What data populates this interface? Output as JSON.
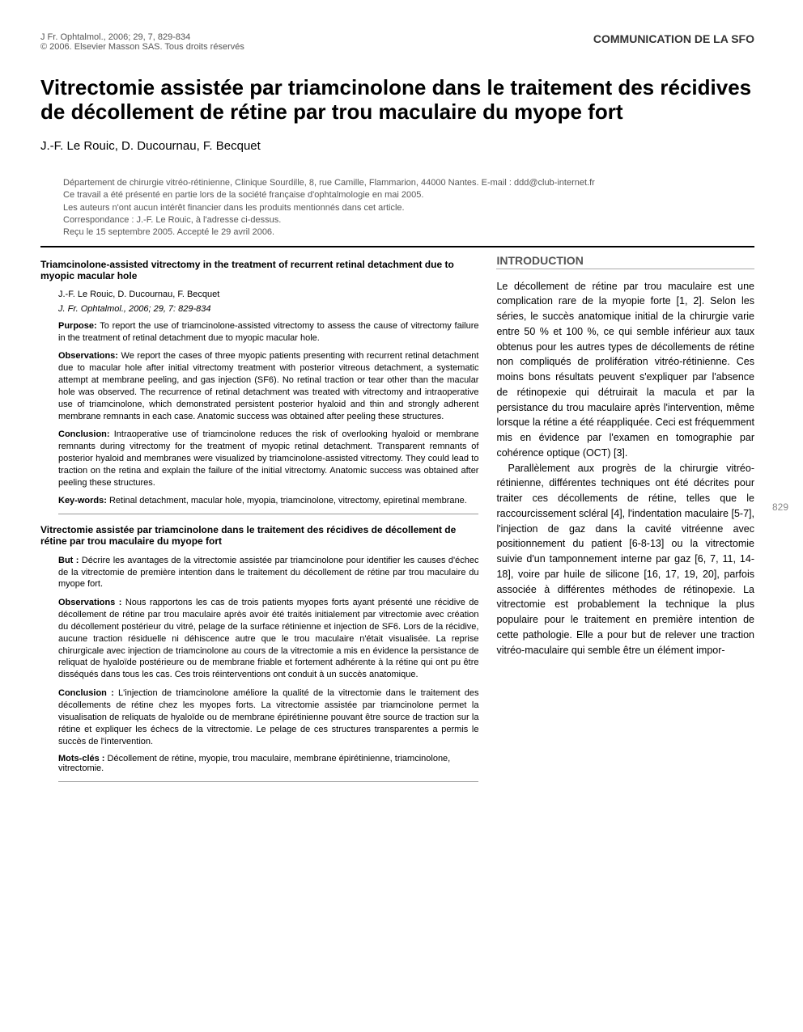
{
  "header": {
    "journal_ref": "J Fr. Ophtalmol., 2006; 29, 7, 829-834",
    "copyright": "© 2006. Elsevier Masson SAS. Tous droits réservés",
    "comm_type": "COMMUNICATION DE LA SFO"
  },
  "title": "Vitrectomie assistée par triamcinolone dans le traitement des récidives de décollement de rétine par trou maculaire du myope fort",
  "authors": "J.-F. Le Rouic, D. Ducournau, F. Becquet",
  "affiliations": [
    "Département de chirurgie vitréo-rétinienne, Clinique Sourdille, 8, rue Camille, Flammarion, 44000 Nantes. E-mail : ddd@club-internet.fr",
    "Ce travail a été présenté en partie lors de la société française d'ophtalmologie en mai 2005.",
    "Les auteurs n'ont aucun intérêt financier dans les produits mentionnés dans cet article.",
    "Correspondance : J.-F. Le Rouic, à l'adresse ci-dessus.",
    "Reçu le 15 septembre 2005. Accepté le 29 avril 2006."
  ],
  "abstract_en": {
    "title": "Triamcinolone-assisted vitrectomy in the treatment of recurrent retinal detachment due to myopic macular hole",
    "authors": "J.-F. Le Rouic, D. Ducournau, F. Becquet",
    "ref": "J. Fr. Ophtalmol., 2006; 29, 7: 829-834",
    "purpose_label": "Purpose:",
    "purpose": " To report the use of triamcinolone-assisted vitrectomy to assess the cause of vitrectomy failure in the treatment of retinal detachment due to myopic macular hole.",
    "observations_label": "Observations:",
    "observations": " We report the cases of three myopic patients presenting with recurrent retinal detachment due to macular hole after initial vitrectomy treatment with posterior vitreous detachment, a systematic attempt at membrane peeling, and gas injection (SF6). No retinal traction or tear other than the macular hole was observed. The recurrence of retinal detachment was treated with vitrectomy and intraoperative use of triamcinolone, which demonstrated persistent posterior hyaloid and thin and strongly adherent membrane remnants in each case. Anatomic success was obtained after peeling these structures.",
    "conclusion_label": "Conclusion:",
    "conclusion": " Intraoperative use of triamcinolone reduces the risk of overlooking hyaloid or membrane remnants during vitrectomy for the treatment of myopic retinal detachment. Transparent remnants of posterior hyaloid and membranes were visualized by triamcinolone-assisted vitrectomy. They could lead to traction on the retina and explain the failure of the initial vitrectomy. Anatomic success was obtained after peeling these structures.",
    "keywords_label": "Key-words:",
    "keywords": " Retinal detachment, macular hole, myopia, triamcinolone, vitrectomy, epiretinal membrane."
  },
  "abstract_fr": {
    "title": "Vitrectomie assistée par triamcinolone dans le traitement des récidives de décollement de rétine par trou maculaire du myope fort",
    "but_label": "But :",
    "but": " Décrire les avantages de la vitrectomie assistée par triamcinolone pour identifier les causes d'échec de la vitrectomie de première intention dans le traitement du décollement de rétine par trou maculaire du myope fort.",
    "observations_label": "Observations :",
    "observations": " Nous rapportons les cas de trois patients myopes forts ayant présenté une récidive de décollement de rétine par trou maculaire après avoir été traités initialement par vitrectomie avec création du décollement postérieur du vitré, pelage de la surface rétinienne et injection de SF6. Lors de la récidive, aucune traction résiduelle ni déhiscence autre que le trou maculaire n'était visualisée. La reprise chirurgicale avec injection de triamcinolone au cours de la vitrectomie a mis en évidence la persistance de reliquat de hyaloïde postérieure ou de membrane friable et fortement adhérente à la rétine qui ont pu être disséqués dans tous les cas. Ces trois réinterventions ont conduit à un succès anatomique.",
    "conclusion_label": "Conclusion :",
    "conclusion": " L'injection de triamcinolone améliore la qualité de la vitrectomie dans le traitement des décollements de rétine chez les myopes forts. La vitrectomie assistée par triamcinolone permet la visualisation de reliquats de hyaloïde ou de membrane épirétinienne pouvant être source de traction sur la rétine et expliquer les échecs de la vitrectomie. Le pelage de ces structures transparentes a permis le succès de l'intervention.",
    "motscles_label": "Mots-clés :",
    "motscles": " Décollement de rétine, myopie, trou maculaire, membrane épirétinienne, triamcinolone, vitrectomie."
  },
  "intro": {
    "heading": "INTRODUCTION",
    "p1": "Le décollement de rétine par trou maculaire est une complication rare de la myopie forte [1, 2]. Selon les séries, le succès anatomique initial de la chirurgie varie entre 50 % et 100 %, ce qui semble inférieur aux taux obtenus pour les autres types de décollements de rétine non compliqués de prolifération vitréo-rétinienne. Ces moins bons résultats peuvent s'expliquer par l'absence de rétinopexie qui détruirait la macula et par la persistance du trou maculaire après l'intervention, même lorsque la rétine a été réappliquée. Ceci est fréquemment mis en évidence par l'examen en tomographie par cohérence optique (OCT) [3].",
    "p2": "Parallèlement aux progrès de la chirurgie vitréo-rétinienne, différentes techniques ont été décrites pour traiter ces décollements de rétine, telles que le raccourcissement scléral [4], l'indentation maculaire [5-7], l'injection de gaz dans la cavité vitréenne avec positionnement du patient [6-8-13] ou la vitrectomie suivie d'un tamponnement interne par gaz [6, 7, 11, 14-18], voire par huile de silicone [16, 17, 19, 20], parfois associée à différentes méthodes de rétinopexie. La vitrectomie est probablement la technique la plus populaire pour le traitement en première intention de cette pathologie. Elle a pour but de relever une traction vitréo-maculaire qui semble être un élément impor-"
  },
  "page_number": "829"
}
